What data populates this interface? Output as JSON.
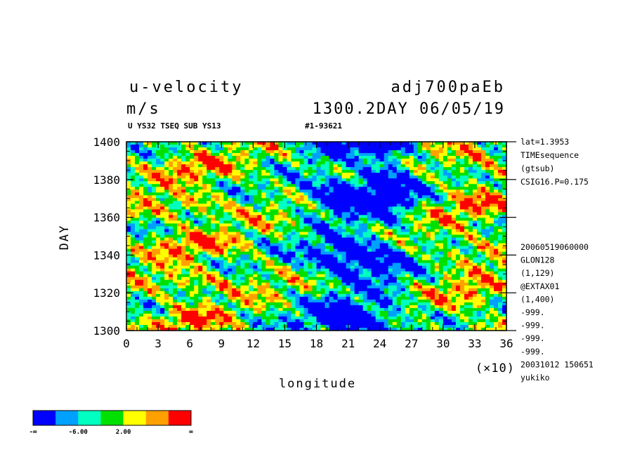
{
  "header": {
    "variable": "u-velocity",
    "units": "m/s",
    "dataset": "adj700paEb",
    "time_stamp": "1300.2DAY 06/05/19",
    "subtitle_left": "U YS32 TSEQ SUB YS13",
    "subtitle_right": "#1-93621"
  },
  "right_info": [
    "lat=1.3953",
    "TIMEsequence",
    "(gtsub)",
    "CSIG16.P=0.175"
  ],
  "right_meta": [
    "20060519060000",
    "GLON128",
    "(1,129)",
    "@EXTAX01",
    "(1,400)",
    "-999.",
    "-999.",
    "-999.",
    "-999.",
    "20031012 150651",
    "yukiko"
  ],
  "chart_data": {
    "type": "heatmap",
    "title": "u-velocity",
    "xlabel": "longitude",
    "x_multiplier_label": "(×10)",
    "ylabel": "DAY",
    "xlim": [
      0,
      36
    ],
    "ylim": [
      1300,
      1400
    ],
    "x_ticks": [
      "0",
      "3",
      "6",
      "9",
      "12",
      "15",
      "18",
      "21",
      "24",
      "27",
      "30",
      "33",
      "36"
    ],
    "y_ticks": [
      "1300",
      "1320",
      "1340",
      "1360",
      "1380",
      "1400"
    ],
    "grid": false,
    "colorbar": {
      "colors": [
        "#0000ff",
        "#00a0ff",
        "#00ffc0",
        "#00e000",
        "#ffff00",
        "#ffa000",
        "#ff0000"
      ],
      "labels": [
        "-∞",
        "-6.00",
        "2.00",
        "∞"
      ]
    },
    "regions_note": "filled contour field of u-velocity (m/s); dominant negative (blue) band near longitude 15-27 (×10)"
  }
}
